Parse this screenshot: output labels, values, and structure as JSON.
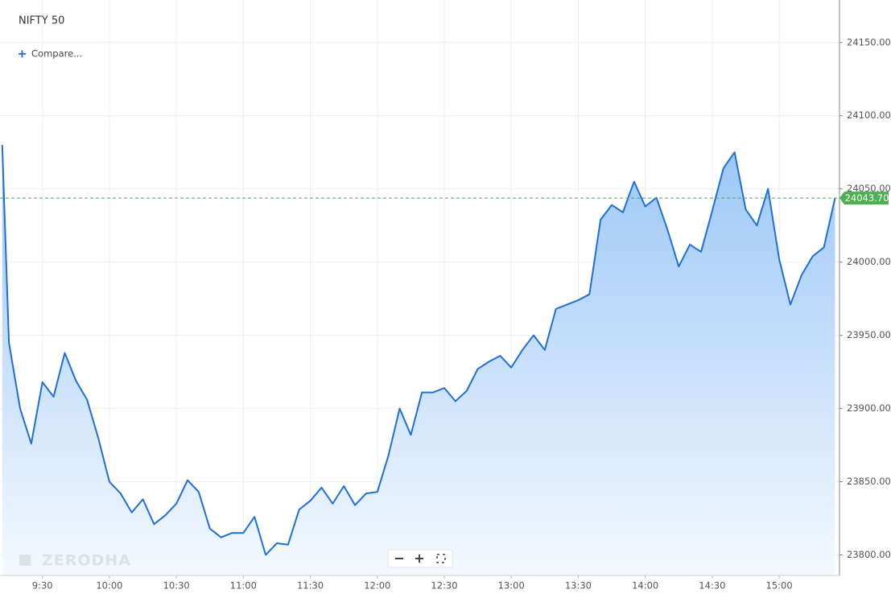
{
  "chart_data": {
    "type": "area",
    "title": "NIFTY 50",
    "compare_label": "Compare...",
    "watermark": "ZERODHA",
    "color": "#1f6fd8",
    "x": [
      "9:12",
      "9:15",
      "9:20",
      "9:25",
      "9:30",
      "9:35",
      "9:40",
      "9:45",
      "9:50",
      "9:55",
      "10:00",
      "10:05",
      "10:10",
      "10:15",
      "10:20",
      "10:25",
      "10:30",
      "10:35",
      "10:40",
      "10:45",
      "10:50",
      "10:55",
      "11:00",
      "11:05",
      "11:10",
      "11:15",
      "11:20",
      "11:25",
      "11:30",
      "11:35",
      "11:40",
      "11:45",
      "11:50",
      "11:55",
      "12:00",
      "12:05",
      "12:10",
      "12:15",
      "12:20",
      "12:25",
      "12:30",
      "12:35",
      "12:40",
      "12:45",
      "12:50",
      "12:55",
      "13:00",
      "13:05",
      "13:10",
      "13:15",
      "13:20",
      "13:25",
      "13:30",
      "13:35",
      "13:40",
      "13:45",
      "13:50",
      "13:55",
      "14:00",
      "14:05",
      "14:10",
      "14:15",
      "14:20",
      "14:25",
      "14:30",
      "14:35",
      "14:40",
      "14:45",
      "14:50",
      "14:55",
      "15:00",
      "15:05",
      "15:10",
      "15:15",
      "15:20",
      "15:25"
    ],
    "values": [
      24080,
      23945,
      23900,
      23876,
      23918,
      23908,
      23938,
      23919,
      23906,
      23880,
      23850,
      23842,
      23829,
      23838,
      23821,
      23827,
      23835,
      23851,
      23843,
      23818,
      23812,
      23815,
      23815,
      23826,
      23800,
      23808,
      23807,
      23831,
      23837,
      23846,
      23835,
      23847,
      23834,
      23842,
      23843,
      23868,
      23900,
      23882,
      23911,
      23911,
      23914,
      23905,
      23912,
      23927,
      23932,
      23936,
      23928,
      23940,
      23950,
      23940,
      23968,
      23971,
      23974,
      23978,
      24029,
      24039,
      24034,
      24055,
      24038,
      24044,
      24022,
      23997,
      24012,
      24007,
      24035,
      24064,
      24075,
      24036,
      24025,
      24050,
      24002,
      23971,
      23991,
      24004,
      24010,
      24043.7
    ],
    "last_value": {
      "value": 24043.7,
      "label": "24043.70"
    },
    "last_color": "#4caf50",
    "xlim": [
      "9:11",
      "15:27"
    ],
    "xticks": [
      "9:30",
      "10:00",
      "10:30",
      "11:00",
      "11:30",
      "12:00",
      "12:30",
      "13:00",
      "13:30",
      "14:00",
      "14:30",
      "15:00"
    ],
    "ylim": [
      23786,
      24179
    ],
    "yticks": [
      {
        "value": 23800,
        "label": "23800.00"
      },
      {
        "value": 23850,
        "label": "23850.00"
      },
      {
        "value": 23900,
        "label": "23900.00"
      },
      {
        "value": 23950,
        "label": "23950.00"
      },
      {
        "value": 24000,
        "label": "24000.00"
      },
      {
        "value": 24050,
        "label": "24050.00"
      },
      {
        "value": 24100,
        "label": "24100.00"
      },
      {
        "value": 24150,
        "label": "24150.00"
      }
    ],
    "grid": true
  }
}
